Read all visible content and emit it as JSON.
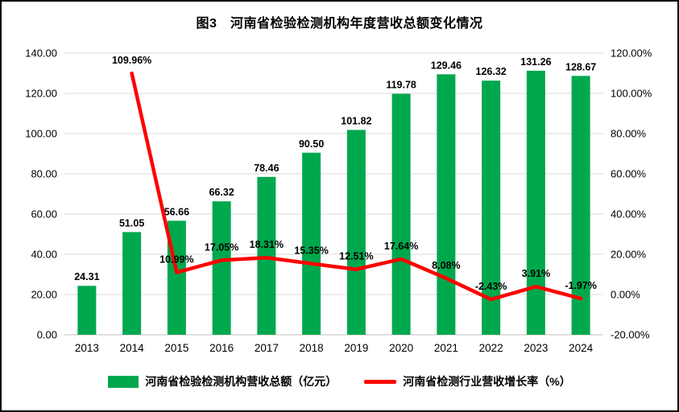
{
  "chart_data": {
    "type": "bar+line",
    "title": "图3　河南省检验检测机构年度营收总额变化情况",
    "categories": [
      "2013",
      "2014",
      "2015",
      "2016",
      "2017",
      "2018",
      "2019",
      "2020",
      "2021",
      "2022",
      "2023",
      "2024"
    ],
    "series": [
      {
        "name": "河南省检验检测机构营收总额（亿元）",
        "type": "bar",
        "axis": "left",
        "color": "#00A84D",
        "values": [
          24.31,
          51.05,
          56.66,
          66.32,
          78.46,
          90.5,
          101.82,
          119.78,
          129.46,
          126.32,
          131.26,
          128.67
        ]
      },
      {
        "name": "河南省检测行业营收增长率（%）",
        "type": "line",
        "axis": "right",
        "color": "#FF0000",
        "values": [
          null,
          109.96,
          10.99,
          17.05,
          18.31,
          15.35,
          12.51,
          17.64,
          8.08,
          -2.43,
          3.91,
          -1.97
        ]
      }
    ],
    "left_axis": {
      "min": 0,
      "max": 140,
      "step": 20,
      "tick_labels": [
        "140.00",
        "120.00",
        "100.00",
        "80.00",
        "60.00",
        "40.00",
        "20.00",
        "0.00"
      ]
    },
    "right_axis": {
      "min": -20,
      "max": 120,
      "step": 20,
      "tick_labels": [
        "120.00%",
        "100.00%",
        "80.00%",
        "60.00%",
        "40.00%",
        "20.00%",
        "0.00%",
        "-20.00%"
      ]
    },
    "grid": true,
    "grid_color": "#D9D9D9",
    "axis_line_color": "#BFBFBF",
    "label_color": "#000000",
    "legend_position": "bottom"
  }
}
